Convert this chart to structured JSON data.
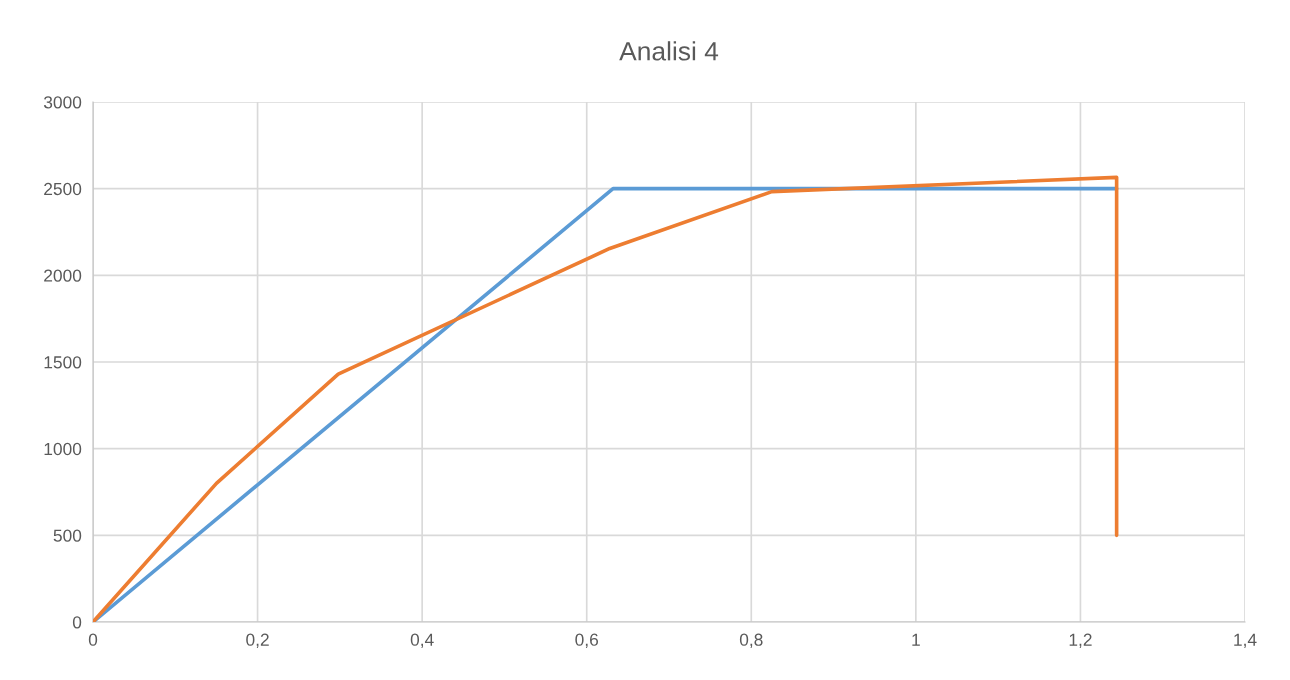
{
  "chart_data": {
    "type": "line",
    "title": "Analisi 4",
    "series": [
      {
        "color": "#5b9bd5",
        "x": [
          0,
          0.632,
          1.244
        ],
        "values": [
          0,
          2500,
          2500
        ]
      },
      {
        "color": "#ed7d31",
        "x": [
          0,
          0.15,
          0.298,
          0.628,
          0.825,
          1.244,
          1.244
        ],
        "values": [
          0,
          800,
          1430,
          2155,
          2483,
          2565,
          500
        ]
      }
    ],
    "xlim": [
      0,
      1.4
    ],
    "xticks": [
      0,
      {
        "value": 0.2,
        "label": "0,2"
      },
      {
        "value": 0.4,
        "label": "0,4"
      },
      {
        "value": 0.6,
        "label": "0,6"
      },
      {
        "value": 0.8,
        "label": "0,8"
      },
      1,
      {
        "value": 1.2,
        "label": "1,2"
      },
      {
        "value": 1.4,
        "label": "1,4"
      }
    ],
    "ylim": [
      0,
      3000
    ],
    "yticks": [
      0,
      500,
      1000,
      1500,
      2000,
      2500,
      3000
    ],
    "grid": true,
    "marker": "none",
    "line_style": "solid"
  }
}
